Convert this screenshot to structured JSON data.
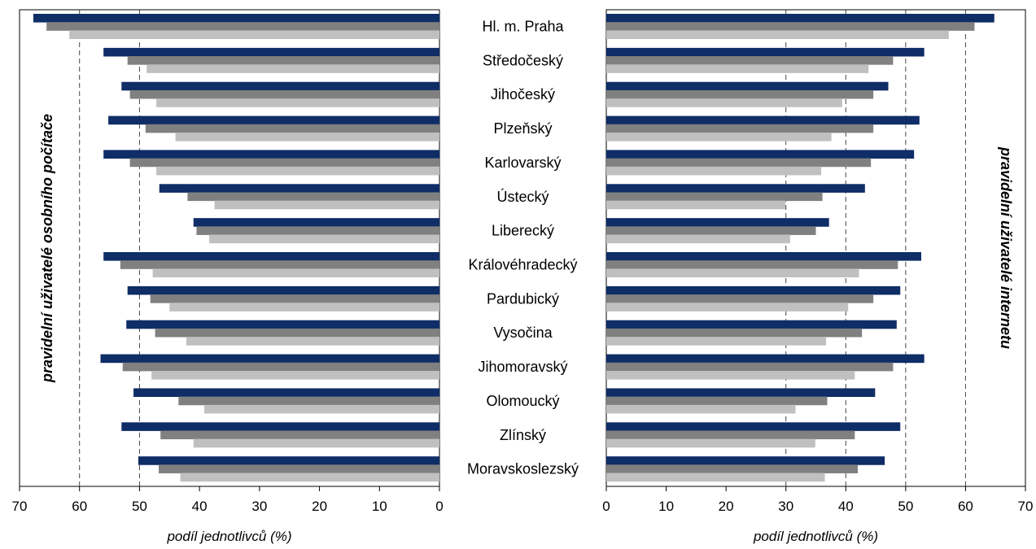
{
  "chart_data": [
    {
      "type": "bar",
      "orientation": "horizontal",
      "direction": "right-to-left",
      "title": "",
      "side_label": "pravidelní uživatelé osobního počítače",
      "xlabel": "podíl jednotlivců (%)",
      "xlim": [
        0,
        70
      ],
      "xticks": [
        70,
        60,
        50,
        40,
        30,
        20,
        10,
        0
      ],
      "reference_lines": [
        50,
        60
      ],
      "categories": [
        "Hl. m. Praha",
        "Středočeský",
        "Jihočeský",
        "Plzeňský",
        "Karlovarský",
        "Ústecký",
        "Liberecký",
        "Královéhradecký",
        "Pardubický",
        "Vysočina",
        "Jihomoravský",
        "Olomoucký",
        "Zlínský",
        "Moravskoslezský"
      ],
      "series": [
        {
          "values": [
            67.7,
            56.0,
            53.0,
            55.2,
            56.0,
            46.7,
            41.0,
            56.0,
            52.0,
            52.2,
            56.5,
            51.0,
            53.0,
            50.2
          ],
          "color": "#0f2d66"
        },
        {
          "values": [
            65.5,
            52.0,
            51.6,
            49.0,
            51.6,
            42.0,
            40.5,
            53.2,
            48.2,
            47.4,
            52.8,
            43.5,
            46.5,
            46.8
          ],
          "color": "#808080"
        },
        {
          "values": [
            61.7,
            48.8,
            47.2,
            44.0,
            47.2,
            37.5,
            38.4,
            47.8,
            45.0,
            42.2,
            48.0,
            39.2,
            41.0,
            43.2
          ],
          "color": "#c0c0c0"
        }
      ]
    },
    {
      "type": "bar",
      "orientation": "horizontal",
      "direction": "left-to-right",
      "title": "",
      "side_label": "pravidelní uživatelé internetu",
      "xlabel": "podíl jednotlivců (%)",
      "xlim": [
        0,
        70
      ],
      "xticks": [
        0,
        10,
        20,
        30,
        40,
        50,
        60,
        70
      ],
      "reference_lines": [
        30,
        40,
        50,
        60
      ],
      "categories": [
        "Hl. m. Praha",
        "Středočeský",
        "Jihočeský",
        "Plzeňský",
        "Karlovarský",
        "Ústecký",
        "Liberecký",
        "Královéhradecký",
        "Pardubický",
        "Vysočina",
        "Jihomoravský",
        "Olomoucký",
        "Zlínský",
        "Moravskoslezský"
      ],
      "series": [
        {
          "values": [
            64.8,
            53.1,
            47.1,
            52.3,
            51.4,
            43.2,
            37.2,
            52.6,
            49.1,
            48.5,
            53.1,
            44.9,
            49.1,
            46.5
          ],
          "color": "#0f2d66"
        },
        {
          "values": [
            61.5,
            47.9,
            44.6,
            44.6,
            44.2,
            36.1,
            35.0,
            48.7,
            44.6,
            42.7,
            47.9,
            36.9,
            41.5,
            42.0
          ],
          "color": "#808080"
        },
        {
          "values": [
            57.2,
            43.8,
            39.4,
            37.6,
            35.9,
            29.9,
            30.7,
            42.2,
            40.4,
            36.7,
            41.5,
            31.6,
            34.9,
            36.5
          ],
          "color": "#c0c0c0"
        }
      ]
    }
  ]
}
